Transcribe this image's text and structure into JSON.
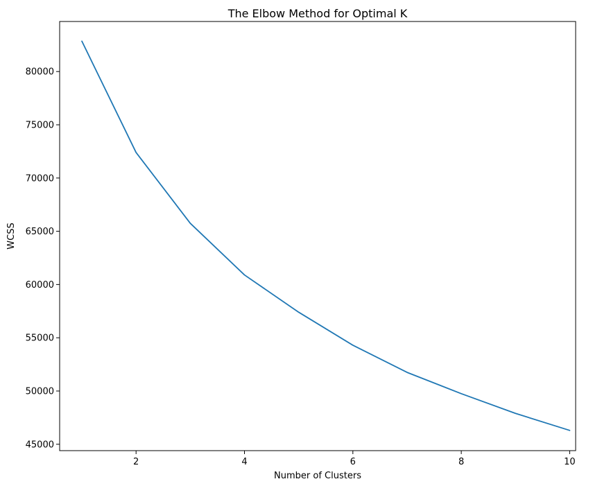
{
  "chart_data": {
    "type": "line",
    "title": "The Elbow Method for Optimal K",
    "xlabel": "Number of Clusters",
    "ylabel": "WCSS",
    "x": [
      1,
      2,
      3,
      4,
      5,
      6,
      7,
      8,
      9,
      10
    ],
    "series": [
      {
        "values": [
          82850,
          72400,
          65750,
          60900,
          57400,
          54300,
          51750,
          49750,
          47900,
          46300
        ],
        "color": "#1f77b4"
      }
    ],
    "xlim": [
      0.59,
      10.11
    ],
    "ylim": [
      44400,
      84700
    ],
    "xticks": [
      2,
      4,
      6,
      8,
      10
    ],
    "xtick_labels": [
      "2",
      "4",
      "6",
      "8",
      "10"
    ],
    "yticks": [
      45000,
      50000,
      55000,
      60000,
      65000,
      70000,
      75000,
      80000
    ],
    "ytick_labels": [
      "45000",
      "50000",
      "55000",
      "60000",
      "65000",
      "70000",
      "75000",
      "80000"
    ],
    "grid": false,
    "legend": "none"
  }
}
